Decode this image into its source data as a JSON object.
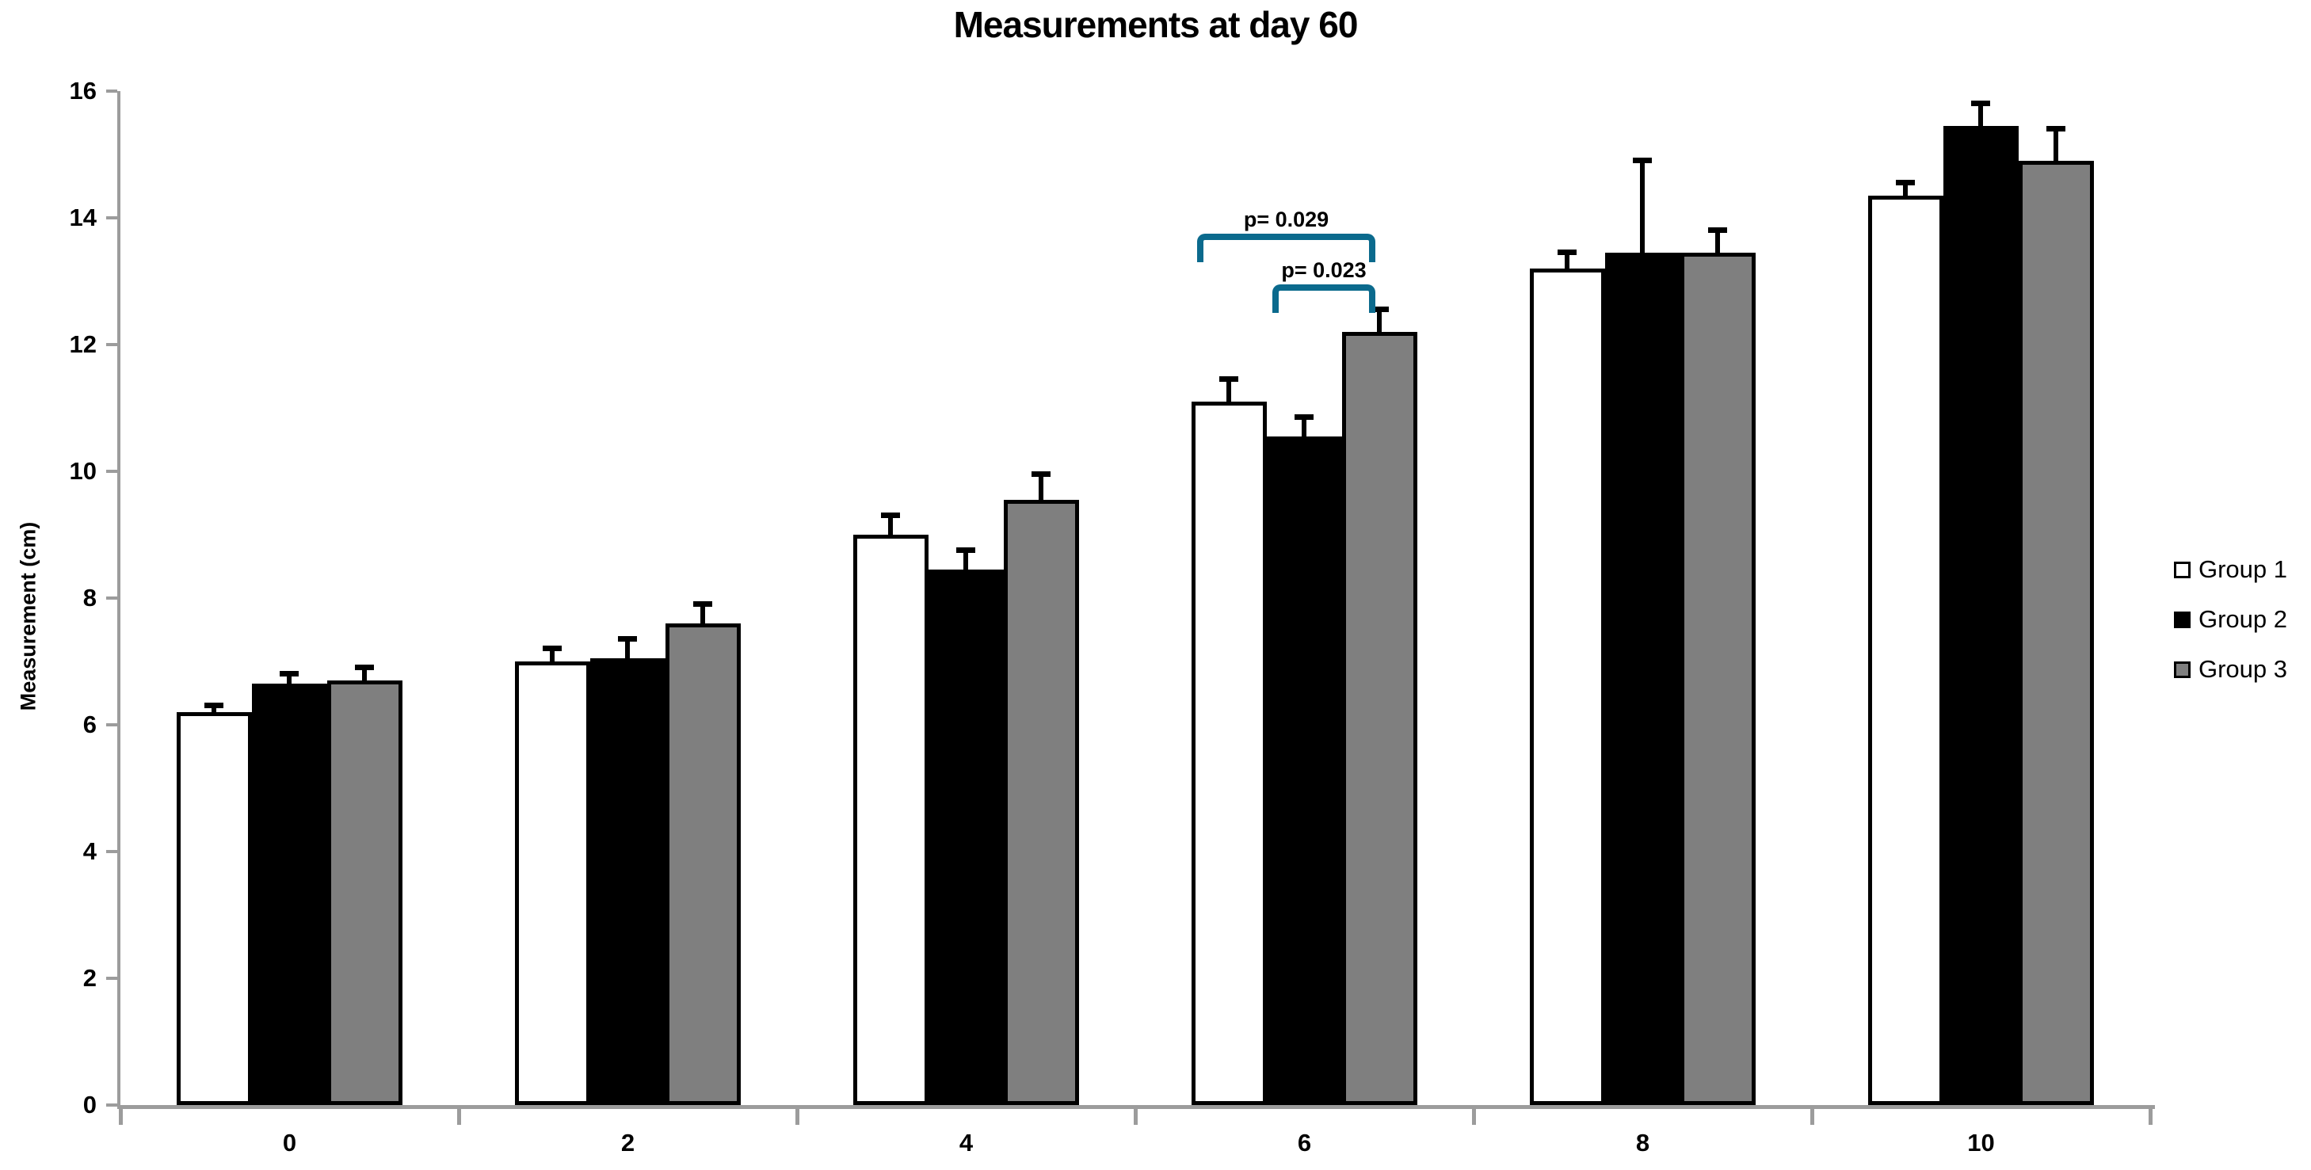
{
  "title": "Measurements at day 60",
  "y_axis": {
    "label": "Measurement (cm)",
    "tick_labels": [
      "0",
      "2",
      "4",
      "6",
      "8",
      "10",
      "12",
      "14",
      "16"
    ],
    "min": 0,
    "max": 16,
    "step": 2
  },
  "x_axis": {
    "tick_labels": [
      "0",
      "2",
      "4",
      "6",
      "8",
      "10"
    ]
  },
  "legend": {
    "items": [
      {
        "label": "Group 1",
        "fill": "#ffffff"
      },
      {
        "label": "Group 2",
        "fill": "#000000"
      },
      {
        "label": "Group 3",
        "fill": "#7f7f7f"
      }
    ]
  },
  "colors": {
    "axis": "#9c9c9c",
    "bar_border": "#000000",
    "bar_white": "#ffffff",
    "bar_black": "#000000",
    "bar_gray": "#7f7f7f",
    "bracket": "#0b6a8d",
    "text": "#000000"
  },
  "chart_data": {
    "type": "bar",
    "title": "Measurements at day 60",
    "xlabel": "",
    "ylabel": "Measurement (cm)",
    "categories": [
      "0",
      "2",
      "4",
      "6",
      "8",
      "10"
    ],
    "series": [
      {
        "name": "Group 1",
        "fill": "#ffffff",
        "border": true,
        "values": [
          6.2,
          7.0,
          9.0,
          11.1,
          13.2,
          14.35
        ],
        "errors_up": [
          0.1,
          0.2,
          0.3,
          0.35,
          0.25,
          0.2
        ]
      },
      {
        "name": "Group 2",
        "fill": "#000000",
        "border": false,
        "values": [
          6.65,
          7.05,
          8.45,
          10.55,
          13.45,
          15.45
        ],
        "errors_up": [
          0.15,
          0.3,
          0.3,
          0.3,
          1.45,
          0.35
        ]
      },
      {
        "name": "Group 3",
        "fill": "#7f7f7f",
        "border": true,
        "values": [
          6.7,
          7.6,
          9.55,
          12.2,
          13.45,
          14.9
        ],
        "errors_up": [
          0.2,
          0.3,
          0.4,
          0.35,
          0.35,
          0.5
        ]
      }
    ],
    "ylim": [
      0,
      16
    ],
    "grid": false,
    "legend_position": "right",
    "annotations": [
      {
        "text": "p= 0.029",
        "category_index": 3,
        "from_series": 0,
        "to_series": 2,
        "bracket_y_value": 13.75
      },
      {
        "text": "p= 0.023",
        "category_index": 3,
        "from_series": 1,
        "to_series": 2,
        "bracket_y_value": 12.95
      }
    ]
  }
}
